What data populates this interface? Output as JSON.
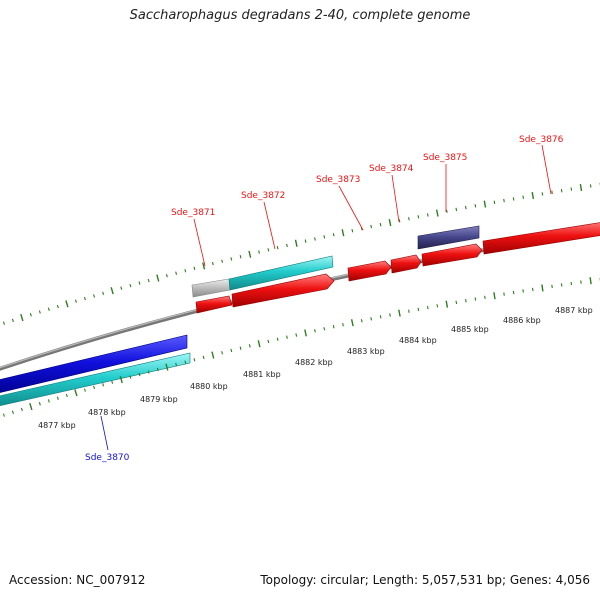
{
  "title": "Saccharophagus degradans 2-40, complete genome",
  "footer": {
    "accession": "Accession: NC_007912",
    "summary": "Topology: circular; Length: 5,057,531 bp; Genes: 4,056"
  },
  "colors": {
    "backbone": "#888888",
    "tick": "#2e7d1e",
    "forward_cds": "#ee1111",
    "reverse_cds": "#1010dd",
    "gene_cyan": "#22cccc",
    "gene_gray": "#bbbbbb",
    "gene_purple": "#44448a"
  },
  "kbp_ticks": [
    "4877 kbp",
    "4878 kbp",
    "4879 kbp",
    "4880 kbp",
    "4881 kbp",
    "4882 kbp",
    "4883 kbp",
    "4884 kbp",
    "4885 kbp",
    "4886 kbp",
    "4887 kbp"
  ],
  "gene_labels": [
    {
      "name": "Sde_3870",
      "color": "#1010dd"
    },
    {
      "name": "Sde_3871",
      "color": "#ee1111"
    },
    {
      "name": "Sde_3872",
      "color": "#ee1111"
    },
    {
      "name": "Sde_3873",
      "color": "#ee1111"
    },
    {
      "name": "Sde_3874",
      "color": "#ee1111"
    },
    {
      "name": "Sde_3875",
      "color": "#ee1111"
    },
    {
      "name": "Sde_3876",
      "color": "#ee1111"
    }
  ]
}
